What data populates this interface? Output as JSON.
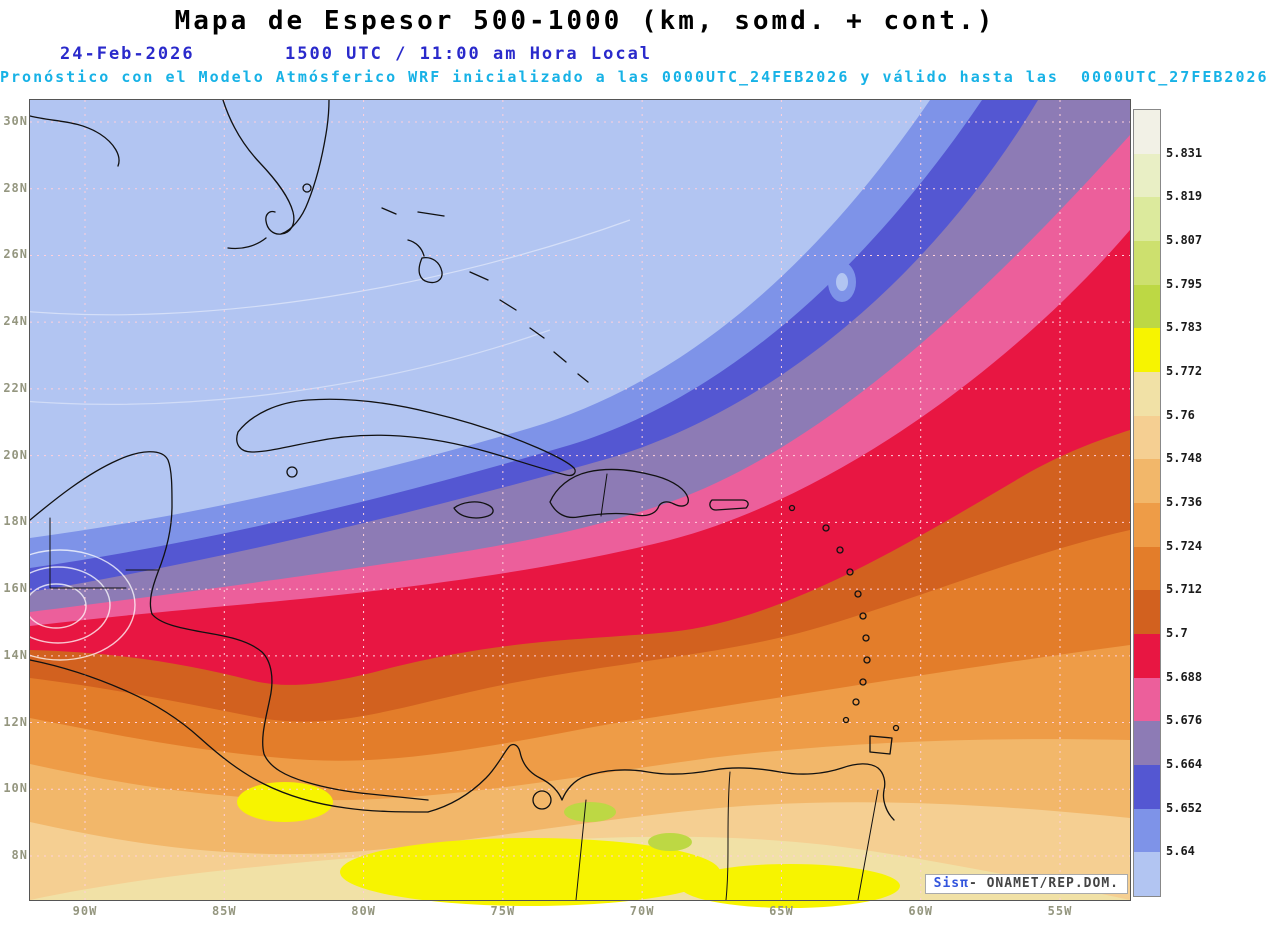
{
  "header": {
    "title": "Mapa de Espesor 500-1000 (km, somd. + cont.)",
    "date": "24-Feb-2026",
    "time": "1500 UTC / 11:00 am Hora Local",
    "forecast": "Pronóstico con el Modelo Atmósferico WRF inicializado a las 0000UTC_24FEB2026 y válido hasta las  0000UTC_27FEB2026"
  },
  "map": {
    "lat_labels": [
      "30N",
      "28N",
      "26N",
      "24N",
      "22N",
      "20N",
      "18N",
      "16N",
      "14N",
      "12N",
      "10N",
      "8N"
    ],
    "lon_labels": [
      "90W",
      "85W",
      "80W",
      "75W",
      "70W",
      "65W",
      "60W",
      "55W"
    ],
    "grid_color": "#ffd0dc",
    "coast_color": "#111111"
  },
  "legend": {
    "values": [
      "5.831",
      "5.819",
      "5.807",
      "5.795",
      "5.783",
      "5.772",
      "5.76",
      "5.748",
      "5.736",
      "5.724",
      "5.712",
      "5.7",
      "5.688",
      "5.676",
      "5.664",
      "5.652",
      "5.64"
    ],
    "colors": [
      "#f2f1e6",
      "#e9efc5",
      "#dcea9d",
      "#cde06e",
      "#bdd844",
      "#f7f400",
      "#f1e1a6",
      "#f5cf92",
      "#f2b76a",
      "#ee9c47",
      "#e37d2a",
      "#d2611f",
      "#e81642",
      "#ec5f9b",
      "#8d7bb5",
      "#5457d2",
      "#7e93e8",
      "#b2c5f2"
    ]
  },
  "attribution": {
    "brand": "Sisπ",
    "separator": "- ",
    "org": "ONAMET/REP.DOM."
  }
}
